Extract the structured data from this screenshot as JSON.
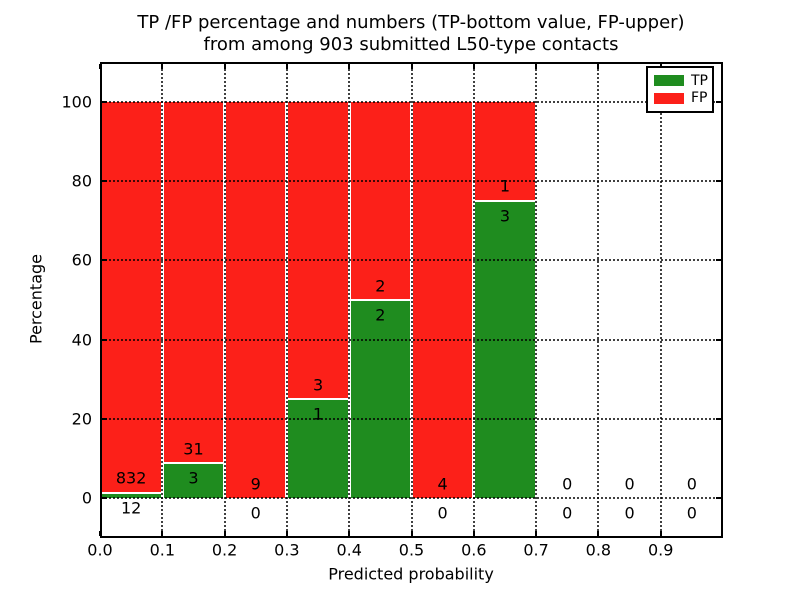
{
  "chart_data": {
    "type": "bar",
    "stacked": true,
    "normalized_to": 100,
    "title_line1": "TP /FP percentage and numbers (TP-bottom value, FP-upper)",
    "title_line2": "from among 903 submitted L50-type contacts",
    "xlabel": "Predicted probability",
    "ylabel": "Percentage",
    "total_submitted": 903,
    "bin_width": 0.1,
    "xlim": [
      0.0,
      1.0
    ],
    "ylim": [
      -10,
      110
    ],
    "grid": "dotted-black-on-top",
    "colors": {
      "tp": "#1f8c1f",
      "fp": "#fc2019"
    },
    "bins": [
      {
        "x_start": 0.0,
        "x_end": 0.1,
        "tp_count": 12,
        "fp_count": 832,
        "tp_pct": 1.42
      },
      {
        "x_start": 0.1,
        "x_end": 0.2,
        "tp_count": 3,
        "fp_count": 31,
        "tp_pct": 8.82
      },
      {
        "x_start": 0.2,
        "x_end": 0.3,
        "tp_count": 0,
        "fp_count": 9,
        "tp_pct": 0
      },
      {
        "x_start": 0.3,
        "x_end": 0.4,
        "tp_count": 1,
        "fp_count": 3,
        "tp_pct": 25
      },
      {
        "x_start": 0.4,
        "x_end": 0.5,
        "tp_count": 2,
        "fp_count": 2,
        "tp_pct": 50
      },
      {
        "x_start": 0.5,
        "x_end": 0.6,
        "tp_count": 0,
        "fp_count": 4,
        "tp_pct": 0
      },
      {
        "x_start": 0.6,
        "x_end": 0.7,
        "tp_count": 3,
        "fp_count": 1,
        "tp_pct": 75
      },
      {
        "x_start": 0.7,
        "x_end": 0.8,
        "tp_count": 0,
        "fp_count": 0,
        "tp_pct": null
      },
      {
        "x_start": 0.8,
        "x_end": 0.9,
        "tp_count": 0,
        "fp_count": 0,
        "tp_pct": null
      },
      {
        "x_start": 0.9,
        "x_end": 1.0,
        "tp_count": 0,
        "fp_count": 0,
        "tp_pct": null
      }
    ],
    "xticks": [
      {
        "value": 0.0,
        "label": "0.0"
      },
      {
        "value": 0.1,
        "label": "0.1"
      },
      {
        "value": 0.2,
        "label": "0.2"
      },
      {
        "value": 0.3,
        "label": "0.3"
      },
      {
        "value": 0.4,
        "label": "0.4"
      },
      {
        "value": 0.5,
        "label": "0.5"
      },
      {
        "value": 0.6,
        "label": "0.6"
      },
      {
        "value": 0.7,
        "label": "0.7"
      },
      {
        "value": 0.8,
        "label": "0.8"
      },
      {
        "value": 0.9,
        "label": "0.9"
      }
    ],
    "yticks": [
      {
        "value": 0,
        "label": "0"
      },
      {
        "value": 20,
        "label": "20"
      },
      {
        "value": 40,
        "label": "40"
      },
      {
        "value": 60,
        "label": "60"
      },
      {
        "value": 80,
        "label": "80"
      },
      {
        "value": 100,
        "label": "100"
      }
    ],
    "legend": {
      "position": "upper-right",
      "items": [
        {
          "label": "TP",
          "color": "#1f8c1f"
        },
        {
          "label": "FP",
          "color": "#fc2019"
        }
      ]
    }
  }
}
